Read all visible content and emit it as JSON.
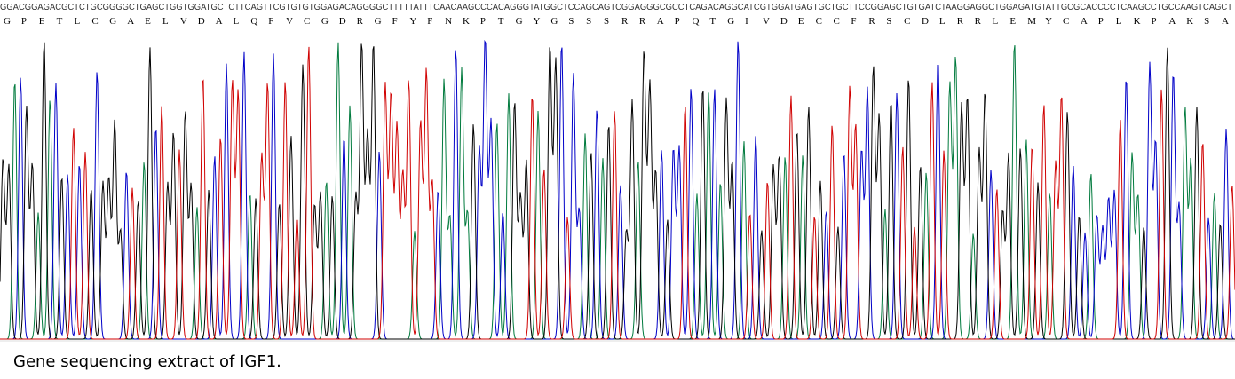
{
  "sequence": "GGACGGAGACGCTCTGCGGGGCTGAGCTGGTGGATGCTCTTCAGTTCGTGTGTGGAGACAGGGGCTTTTTATTTCAACAAGCCCACAGGGTATGGCTCCAGCAGTCGGAGGGCGCCTCAGACAGGCATCGTGGATGAGTGCTGCTTCCGGAGCTGTGATCTAAGGAGGCTGGAGATGTATTGCGCACCCCTCAAGCCTGCCAAGTCAGCT",
  "amino_acids": [
    "G",
    "P",
    "E",
    "T",
    "L",
    "C",
    "G",
    "A",
    "E",
    "L",
    "V",
    "D",
    "A",
    "L",
    "Q",
    "F",
    "V",
    "C",
    "G",
    "D",
    "R",
    "G",
    "F",
    "Y",
    "F",
    "N",
    "K",
    "P",
    "T",
    "G",
    "Y",
    "G",
    "S",
    "S",
    "S",
    "R",
    "R",
    "A",
    "P",
    "Q",
    "T",
    "G",
    "I",
    "V",
    "D",
    "E",
    "C",
    "C",
    "F",
    "R",
    "S",
    "C",
    "D",
    "L",
    "R",
    "R",
    "L",
    "E",
    "M",
    "Y",
    "C",
    "A",
    "P",
    "L",
    "K",
    "P",
    "A",
    "K",
    "S",
    "A"
  ],
  "caption": "Gene sequencing extract of IGF1."
}
